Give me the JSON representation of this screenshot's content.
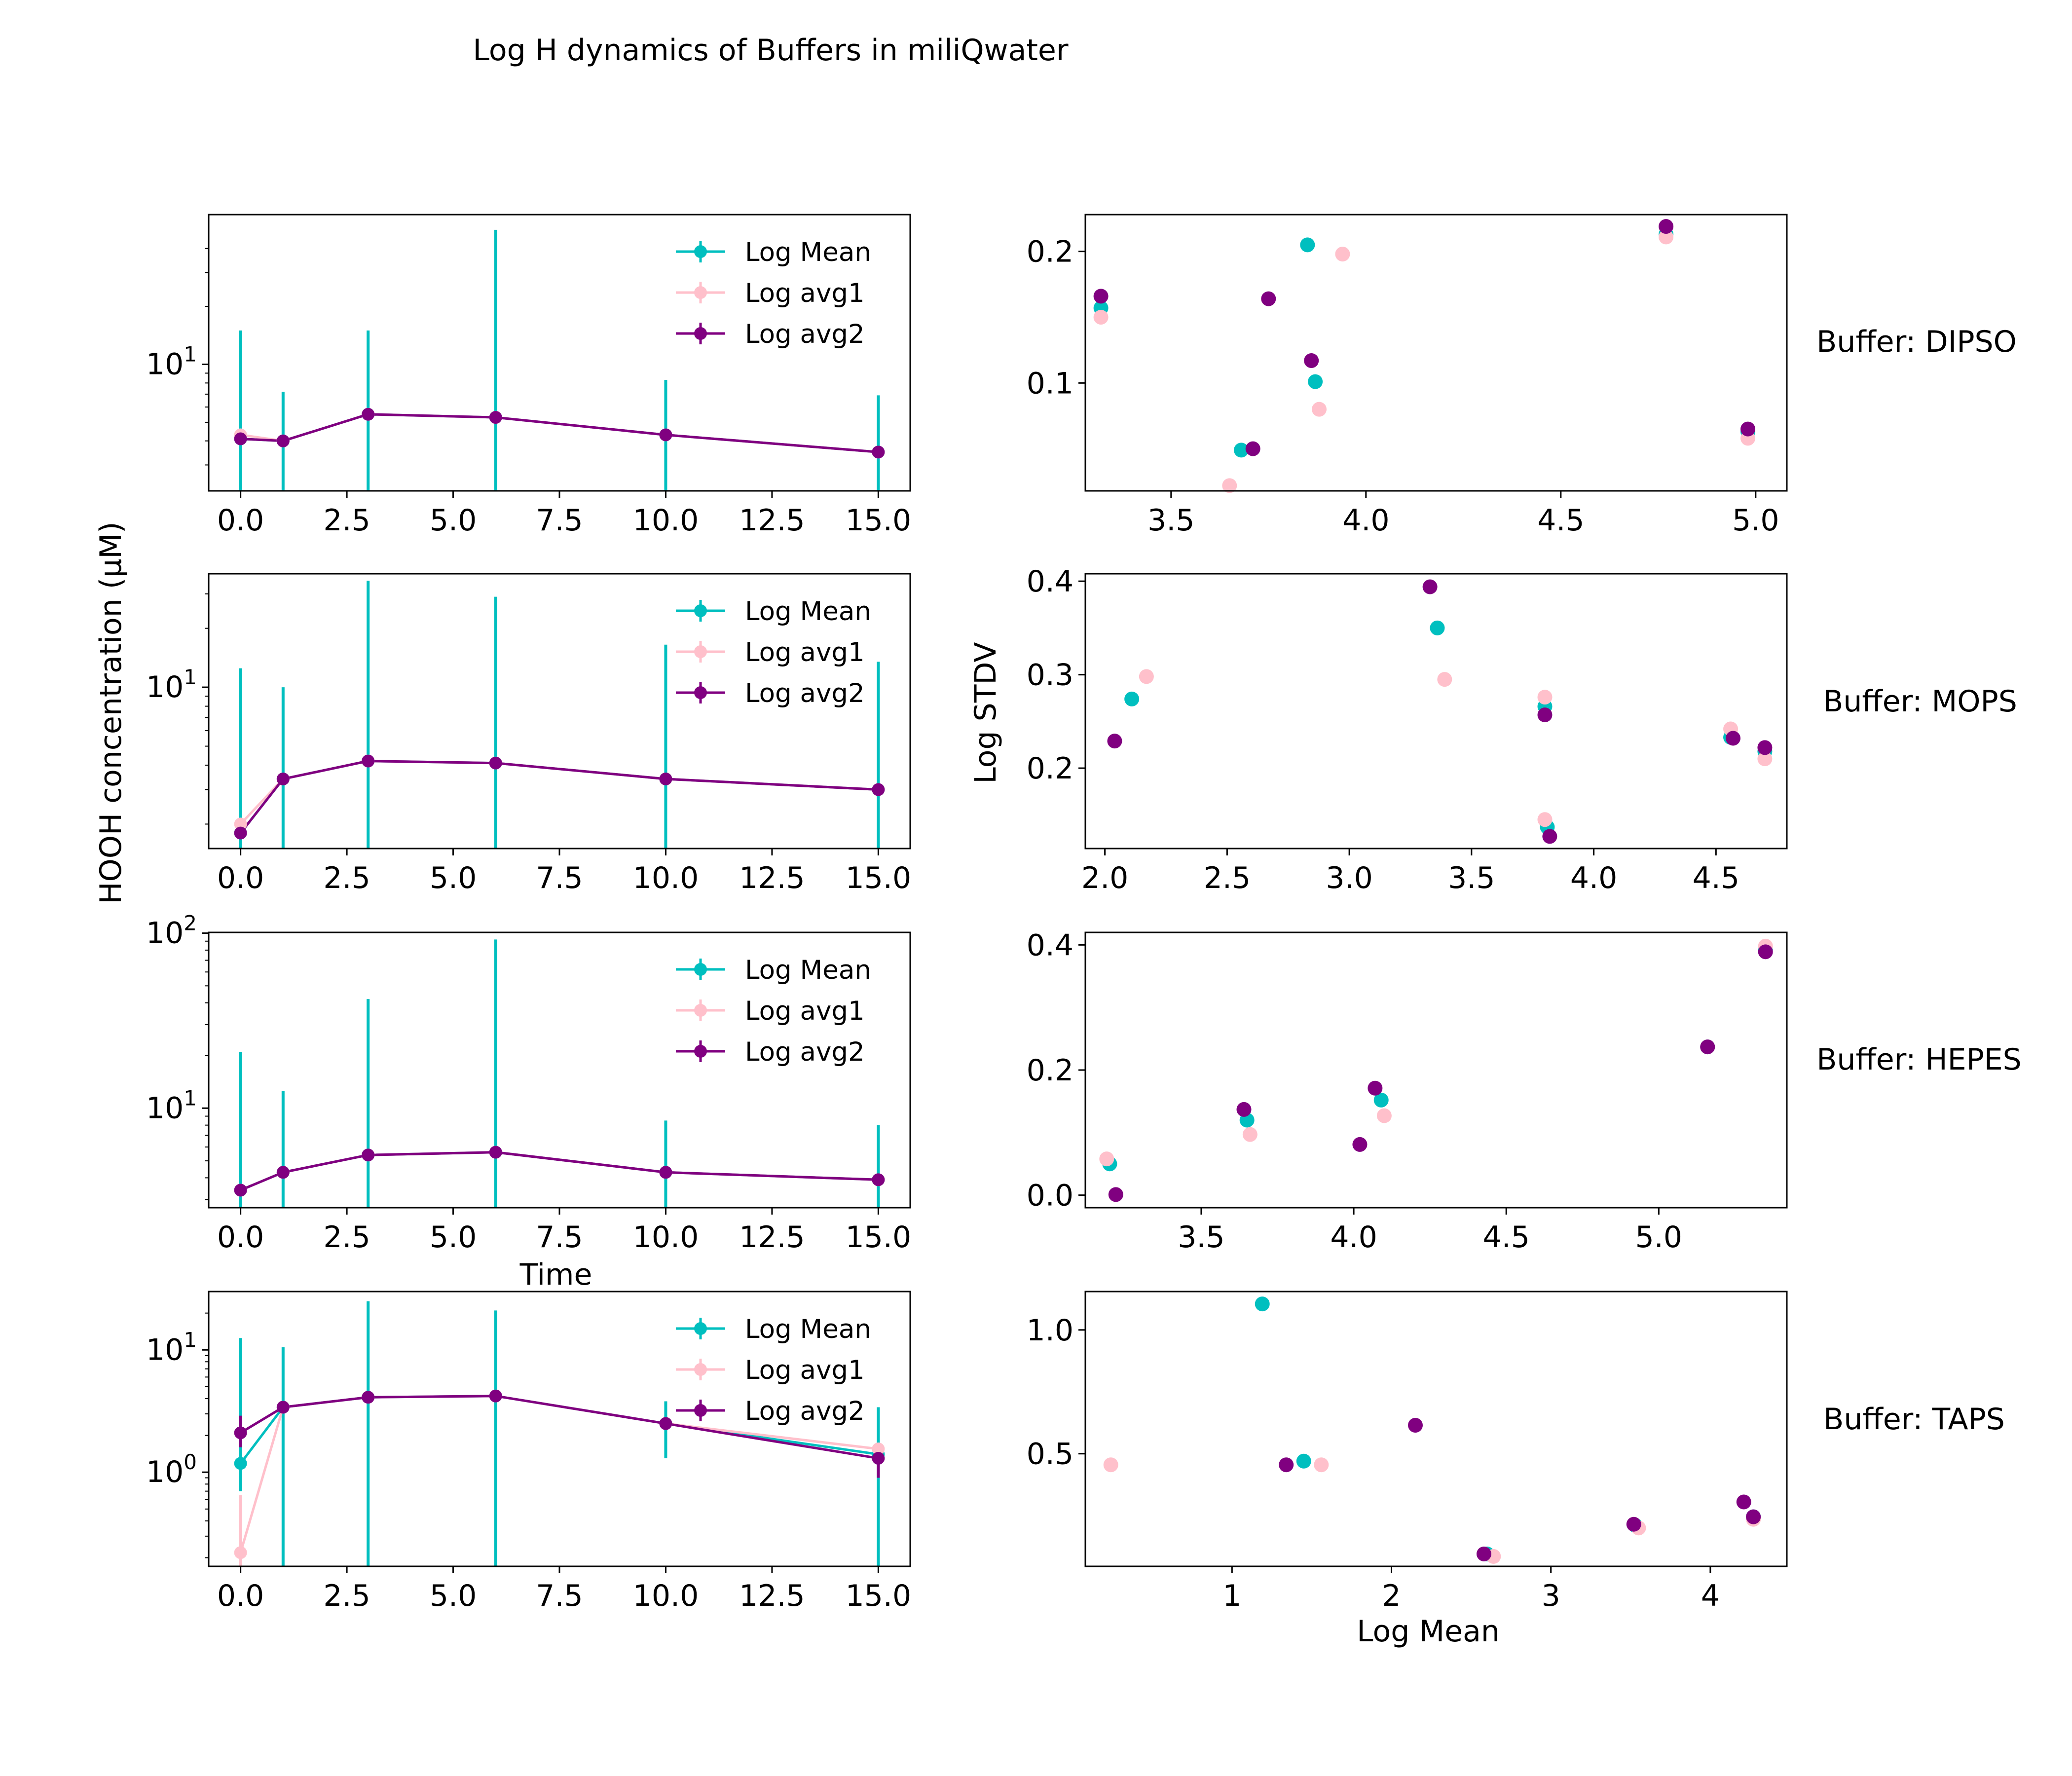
{
  "figure": {
    "title": "Log  H dynamics of Buffers in miliQwater",
    "left_ylabel": "HOOH concentration (μM)",
    "left_xlabel": "Time",
    "right_ylabel": "Log STDV",
    "right_xlabel": "Log Mean"
  },
  "colors": {
    "mean": "#00BFBF",
    "avg1": "#FFC0CB",
    "avg2": "#800080"
  },
  "legend_labels": [
    "Log Mean",
    "Log avg1",
    "Log avg2"
  ],
  "chart_data": [
    {
      "type": "line",
      "panel": "DIPSO-time",
      "yscale": "log",
      "x": [
        0,
        1,
        3,
        6,
        10,
        15
      ],
      "xlim": [
        -0.75,
        15.75
      ],
      "xticks": [
        0.0,
        2.5,
        5.0,
        7.5,
        10.0,
        12.5,
        15.0
      ],
      "xtick_labels": [
        "0.0",
        "2.5",
        "5.0",
        "7.5",
        "10.0",
        "12.5",
        "15.0"
      ],
      "ylim": [
        2.2,
        60
      ],
      "yticks_major": [
        10
      ],
      "ytick_labels": [
        "10^1"
      ],
      "yticks_minor": [
        3,
        4,
        5,
        6,
        7,
        8,
        9,
        20,
        30,
        40
      ],
      "series": [
        {
          "name": "Log Mean",
          "values": [
            4.1,
            4.0,
            5.5,
            5.3,
            4.3,
            3.5
          ],
          "err_top": [
            15.0,
            7.2,
            15.0,
            50.0,
            8.3,
            6.9
          ],
          "err_bottom": [
            2.2,
            2.2,
            2.2,
            2.2,
            2.2,
            2.2
          ]
        },
        {
          "name": "Log avg1",
          "values": [
            4.3,
            4.0,
            5.5,
            5.3,
            4.3,
            3.5
          ],
          "err_top": null,
          "err_bottom": null
        },
        {
          "name": "Log avg2",
          "values": [
            4.1,
            4.0,
            5.5,
            5.3,
            4.3,
            3.5
          ],
          "err_top": null,
          "err_bottom": null
        }
      ],
      "legend": "upper right"
    },
    {
      "type": "line",
      "panel": "MOPS-time",
      "yscale": "log",
      "x": [
        0,
        1,
        3,
        6,
        10,
        15
      ],
      "xlim": [
        -0.75,
        15.75
      ],
      "xticks": [
        0.0,
        2.5,
        5.0,
        7.5,
        10.0,
        12.5,
        15.0
      ],
      "xtick_labels": [
        "0.0",
        "2.5",
        "5.0",
        "7.5",
        "10.0",
        "12.5",
        "15.0"
      ],
      "ylim": [
        1.5,
        38
      ],
      "yticks_major": [
        10
      ],
      "ytick_labels": [
        "10^1"
      ],
      "yticks_minor": [
        2,
        3,
        4,
        5,
        6,
        7,
        8,
        9,
        20,
        30
      ],
      "series": [
        {
          "name": "Log Mean",
          "values": [
            1.8,
            3.4,
            4.2,
            4.1,
            3.4,
            3.0
          ],
          "err_top": [
            12.5,
            10.0,
            35.0,
            29.0,
            16.5,
            13.5
          ],
          "err_bottom": [
            1.5,
            1.5,
            1.5,
            1.5,
            1.5,
            1.5
          ]
        },
        {
          "name": "Log avg1",
          "values": [
            2.0,
            3.4,
            4.2,
            4.1,
            3.4,
            3.0
          ],
          "err_top": null,
          "err_bottom": null
        },
        {
          "name": "Log avg2",
          "values": [
            1.8,
            3.4,
            4.2,
            4.1,
            3.4,
            3.0
          ],
          "err_top": null,
          "err_bottom": null
        }
      ],
      "legend": "upper right"
    },
    {
      "type": "line",
      "panel": "HEPES-time",
      "yscale": "log",
      "x": [
        0,
        1,
        3,
        6,
        10,
        15
      ],
      "xlim": [
        -0.75,
        15.75
      ],
      "xticks": [
        0.0,
        2.5,
        5.0,
        7.5,
        10.0,
        12.5,
        15.0
      ],
      "xtick_labels": [
        "0.0",
        "2.5",
        "5.0",
        "7.5",
        "10.0",
        "12.5",
        "15.0"
      ],
      "xlabel": "Time",
      "ylim": [
        2.7,
        101
      ],
      "yticks_major": [
        10,
        100
      ],
      "ytick_labels": [
        "10^1",
        "10^2"
      ],
      "yticks_minor": [
        3,
        4,
        5,
        6,
        7,
        8,
        9,
        20,
        30,
        40,
        50,
        60,
        70,
        80,
        90
      ],
      "series": [
        {
          "name": "Log Mean",
          "values": [
            3.4,
            4.3,
            5.4,
            5.6,
            4.3,
            3.9
          ],
          "err_top": [
            21.0,
            12.5,
            42.0,
            92.0,
            8.5,
            8.0
          ],
          "err_bottom": [
            2.7,
            2.7,
            2.7,
            2.7,
            2.7,
            2.7
          ]
        },
        {
          "name": "Log avg1",
          "values": [
            3.4,
            4.3,
            5.4,
            5.6,
            4.3,
            3.9
          ],
          "err_top": null,
          "err_bottom": null
        },
        {
          "name": "Log avg2",
          "values": [
            3.4,
            4.3,
            5.4,
            5.6,
            4.3,
            3.9
          ],
          "err_top": null,
          "err_bottom": null
        }
      ],
      "legend": "upper right"
    },
    {
      "type": "line",
      "panel": "TAPS-time",
      "yscale": "log",
      "x": [
        0,
        1,
        3,
        6,
        10,
        15
      ],
      "xlim": [
        -0.75,
        15.75
      ],
      "xticks": [
        0.0,
        2.5,
        5.0,
        7.5,
        10.0,
        12.5,
        15.0
      ],
      "xtick_labels": [
        "0.0",
        "2.5",
        "5.0",
        "7.5",
        "10.0",
        "12.5",
        "15.0"
      ],
      "ylim": [
        0.17,
        30
      ],
      "yticks_major": [
        1,
        10
      ],
      "ytick_labels": [
        "10^0",
        "10^1"
      ],
      "yticks_minor": [
        0.2,
        0.3,
        0.4,
        0.5,
        0.6,
        0.7,
        0.8,
        0.9,
        2,
        3,
        4,
        5,
        6,
        7,
        8,
        9,
        20
      ],
      "series": [
        {
          "name": "Log Mean",
          "values": [
            1.18,
            3.4,
            4.1,
            4.2,
            2.5,
            1.4
          ],
          "err_top": [
            12.5,
            10.5,
            25.0,
            21.0,
            3.8,
            3.4
          ],
          "err_bottom": [
            0.7,
            0.17,
            0.17,
            0.17,
            1.3,
            0.17
          ]
        },
        {
          "name": "Log avg1",
          "values": [
            0.22,
            3.4,
            4.1,
            4.2,
            2.5,
            1.55
          ],
          "err_top": [
            0.65,
            null,
            null,
            null,
            null,
            null
          ],
          "err_bottom": [
            0.17,
            null,
            null,
            null,
            null,
            null
          ]
        },
        {
          "name": "Log avg2",
          "values": [
            2.1,
            3.4,
            4.1,
            4.2,
            2.5,
            1.3
          ],
          "err_top": [
            2.9,
            null,
            null,
            null,
            null,
            1.7
          ],
          "err_bottom": [
            1.6,
            null,
            null,
            null,
            null,
            0.9
          ]
        }
      ],
      "legend": "upper right"
    },
    {
      "type": "scatter",
      "panel": "DIPSO-scatter",
      "buffer_label": "Buffer: DIPSO",
      "xlim": [
        3.28,
        5.08
      ],
      "ylim": [
        0.018,
        0.228
      ],
      "xticks": [
        3.5,
        4.0,
        4.5,
        5.0
      ],
      "xtick_labels": [
        "3.5",
        "4.0",
        "4.5",
        "5.0"
      ],
      "yticks": [
        0.1,
        0.2
      ],
      "ytick_labels": [
        "0.1",
        "0.2"
      ],
      "series": [
        {
          "name": "Log Mean",
          "x": [
            3.32,
            3.68,
            3.85,
            3.87,
            4.77,
            4.98
          ],
          "y": [
            0.157,
            0.049,
            0.205,
            0.101,
            0.213,
            0.063
          ]
        },
        {
          "name": "Log avg1",
          "x": [
            3.32,
            3.65,
            3.94,
            3.88,
            4.77,
            4.98
          ],
          "y": [
            0.15,
            0.022,
            0.198,
            0.08,
            0.211,
            0.058
          ]
        },
        {
          "name": "Log avg2",
          "x": [
            3.32,
            3.71,
            3.75,
            3.86,
            4.77,
            4.98
          ],
          "y": [
            0.166,
            0.05,
            0.164,
            0.117,
            0.219,
            0.065
          ]
        }
      ]
    },
    {
      "type": "scatter",
      "panel": "MOPS-scatter",
      "buffer_label": "Buffer: MOPS",
      "xlim": [
        1.92,
        4.79
      ],
      "ylim": [
        0.114,
        0.408
      ],
      "xticks": [
        2.0,
        2.5,
        3.0,
        3.5,
        4.0,
        4.5
      ],
      "xtick_labels": [
        "2.0",
        "2.5",
        "3.0",
        "3.5",
        "4.0",
        "4.5"
      ],
      "yticks": [
        0.2,
        0.3,
        0.4
      ],
      "ytick_labels": [
        "0.2",
        "0.3",
        "0.4"
      ],
      "ylabel": "Log STDV",
      "series": [
        {
          "name": "Log Mean",
          "x": [
            2.11,
            3.36,
            3.8,
            3.81,
            4.56,
            4.7
          ],
          "y": [
            0.274,
            0.35,
            0.266,
            0.137,
            0.233,
            0.218
          ]
        },
        {
          "name": "Log avg1",
          "x": [
            2.17,
            3.39,
            3.8,
            3.8,
            4.56,
            4.7
          ],
          "y": [
            0.298,
            0.295,
            0.276,
            0.145,
            0.242,
            0.21
          ]
        },
        {
          "name": "Log avg2",
          "x": [
            2.04,
            3.33,
            3.8,
            3.82,
            4.57,
            4.7
          ],
          "y": [
            0.229,
            0.394,
            0.257,
            0.127,
            0.232,
            0.222
          ]
        }
      ]
    },
    {
      "type": "scatter",
      "panel": "HEPES-scatter",
      "buffer_label": "Buffer: HEPES",
      "xlim": [
        3.12,
        5.42
      ],
      "ylim": [
        -0.02,
        0.42
      ],
      "xticks": [
        3.5,
        4.0,
        4.5,
        5.0
      ],
      "xtick_labels": [
        "3.5",
        "4.0",
        "4.5",
        "5.0"
      ],
      "yticks": [
        0.0,
        0.2,
        0.4
      ],
      "ytick_labels": [
        "0.0",
        "0.2",
        "0.4"
      ],
      "series": [
        {
          "name": "Log Mean",
          "x": [
            3.2,
            3.65,
            4.09,
            5.16,
            5.35
          ],
          "y": [
            0.05,
            0.12,
            0.152,
            0.237,
            0.392
          ]
        },
        {
          "name": "Log avg1",
          "x": [
            3.19,
            3.66,
            4.1,
            5.16,
            5.35
          ],
          "y": [
            0.058,
            0.097,
            0.127,
            0.237,
            0.398
          ]
        },
        {
          "name": "Log avg2",
          "x": [
            3.22,
            3.64,
            4.02,
            4.07,
            5.16,
            5.35
          ],
          "y": [
            0.001,
            0.137,
            0.081,
            0.171,
            0.237,
            0.389
          ]
        }
      ]
    },
    {
      "type": "scatter",
      "panel": "TAPS-scatter",
      "buffer_label": "Buffer: TAPS",
      "xlim": [
        0.08,
        4.48
      ],
      "ylim": [
        0.045,
        1.155
      ],
      "xticks": [
        1,
        2,
        3,
        4
      ],
      "xtick_labels": [
        "1",
        "2",
        "3",
        "4"
      ],
      "yticks": [
        0.5,
        1.0
      ],
      "ytick_labels": [
        "0.5",
        "1.0"
      ],
      "xlabel": "Log Mean",
      "series": [
        {
          "name": "Log Mean",
          "x": [
            1.19,
            1.45,
            2.6,
            3.53,
            4.27
          ],
          "y": [
            1.105,
            0.47,
            0.095,
            0.21,
            0.245
          ]
        },
        {
          "name": "Log avg1",
          "x": [
            0.24,
            1.56,
            2.64,
            3.55,
            4.27
          ],
          "y": [
            0.455,
            0.455,
            0.085,
            0.2,
            0.235
          ]
        },
        {
          "name": "Log avg2",
          "x": [
            1.34,
            2.15,
            2.58,
            3.52,
            4.21,
            4.27
          ],
          "y": [
            0.455,
            0.615,
            0.095,
            0.215,
            0.305,
            0.245
          ]
        }
      ]
    }
  ]
}
